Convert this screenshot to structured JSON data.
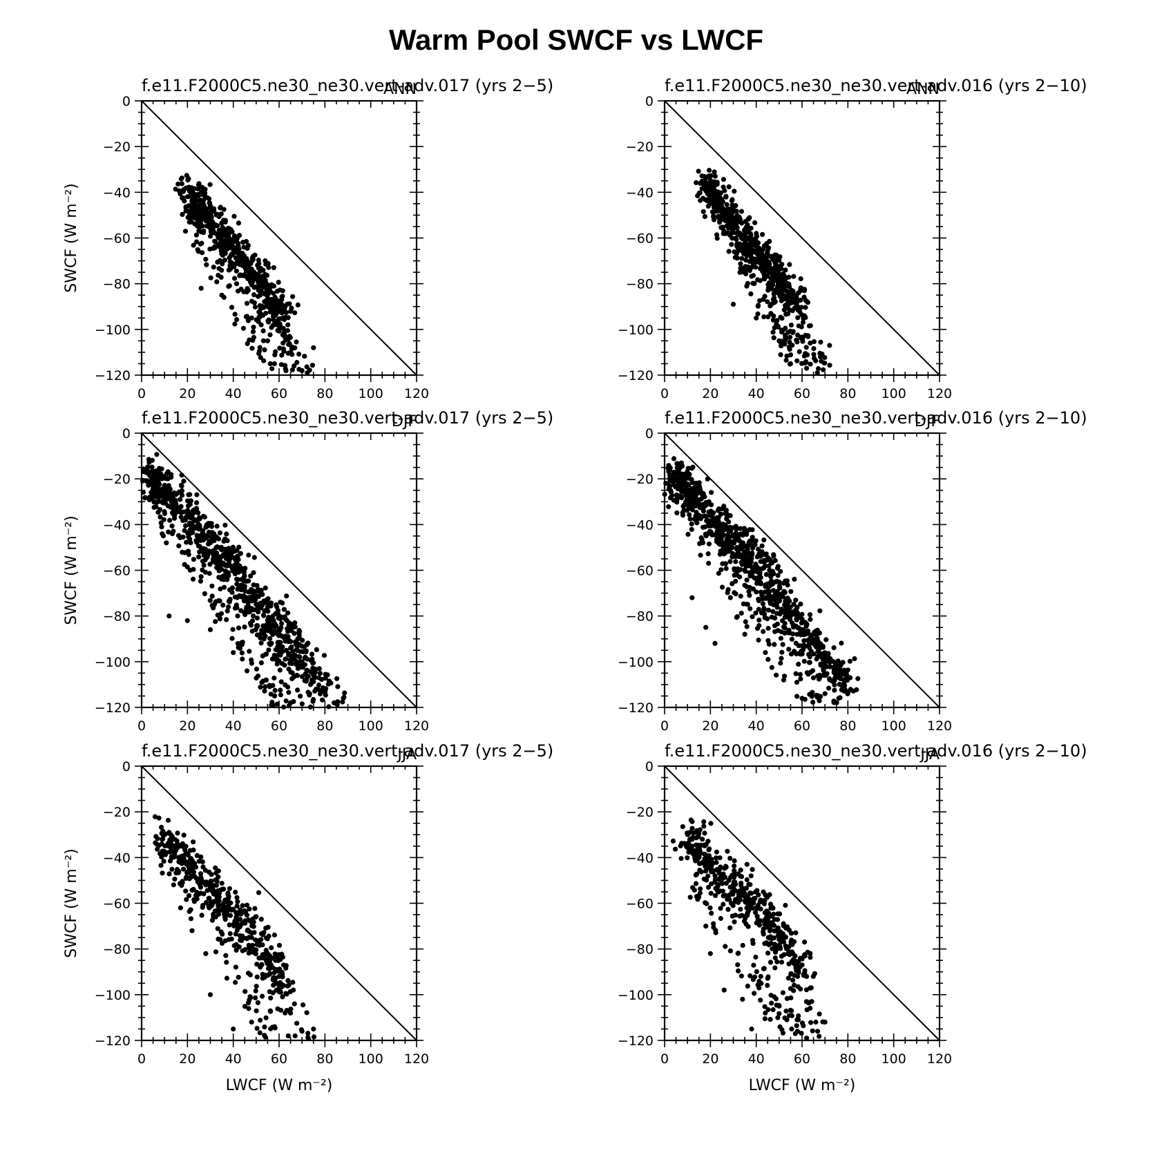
{
  "figure_title": "Warm Pool SWCF vs LWCF",
  "colors": {
    "points": "#000000",
    "axes": "#000000",
    "background": "#ffffff"
  },
  "chart_data": [
    {
      "type": "scatter",
      "title": "f.e11.F2000C5.ne30_ne30.vert-adv.017 (yrs 2−5)",
      "season": "ANN",
      "xlabel": "LWCF (W m⁻²)",
      "ylabel": "SWCF (W m⁻²)",
      "show_xlabel": false,
      "show_ylabel": true,
      "xlim": [
        0,
        120
      ],
      "ylim": [
        -120,
        0
      ],
      "xticks": [
        0,
        20,
        40,
        60,
        80,
        100,
        120
      ],
      "yticks": [
        0,
        -20,
        -40,
        -60,
        -80,
        -100,
        -120
      ],
      "reference_line": {
        "from": [
          0,
          0
        ],
        "to": [
          120,
          -120
        ]
      },
      "cloud": {
        "n": 650,
        "seed": 11,
        "core": [
          [
            20,
            -38
          ],
          [
            25,
            -48
          ],
          [
            35,
            -58
          ],
          [
            45,
            -70
          ],
          [
            55,
            -83
          ],
          [
            62,
            -95
          ]
        ],
        "core_spread": 3,
        "tail": {
          "x": [
            25,
            72
          ],
          "y": [
            -60,
            -120
          ]
        }
      },
      "points": [
        [
          20,
          -38
        ],
        [
          22,
          -44
        ],
        [
          25,
          -50
        ],
        [
          30,
          -54
        ],
        [
          35,
          -58
        ],
        [
          40,
          -64
        ],
        [
          45,
          -70
        ],
        [
          50,
          -78
        ],
        [
          55,
          -83
        ],
        [
          60,
          -90
        ],
        [
          62,
          -95
        ],
        [
          26,
          -82
        ],
        [
          35,
          -85
        ],
        [
          48,
          -95
        ],
        [
          55,
          -105
        ],
        [
          58,
          -115
        ],
        [
          65,
          -110
        ],
        [
          70,
          -118
        ],
        [
          75,
          -108
        ]
      ]
    },
    {
      "type": "scatter",
      "title": "f.e11.F2000C5.ne30_ne30.vert-adv.016 (yrs 2−10)",
      "season": "ANN",
      "xlabel": "LWCF (W m⁻²)",
      "ylabel": "SWCF (W m⁻²)",
      "show_xlabel": false,
      "show_ylabel": false,
      "xlim": [
        0,
        120
      ],
      "ylim": [
        -120,
        0
      ],
      "xticks": [
        0,
        20,
        40,
        60,
        80,
        100,
        120
      ],
      "yticks": [
        0,
        -20,
        -40,
        -60,
        -80,
        -100,
        -120
      ],
      "reference_line": {
        "from": [
          0,
          0
        ],
        "to": [
          120,
          -120
        ]
      },
      "cloud": {
        "n": 650,
        "seed": 16,
        "core": [
          [
            19,
            -37
          ],
          [
            25,
            -48
          ],
          [
            33,
            -58
          ],
          [
            42,
            -68
          ],
          [
            50,
            -78
          ],
          [
            58,
            -90
          ]
        ],
        "core_spread": 3,
        "tail": {
          "x": [
            28,
            72
          ],
          "y": [
            -62,
            -120
          ]
        }
      },
      "points": [
        [
          19,
          -37
        ],
        [
          22,
          -42
        ],
        [
          25,
          -48
        ],
        [
          30,
          -54
        ],
        [
          33,
          -58
        ],
        [
          38,
          -63
        ],
        [
          42,
          -68
        ],
        [
          46,
          -73
        ],
        [
          50,
          -78
        ],
        [
          55,
          -85
        ],
        [
          58,
          -90
        ],
        [
          30,
          -89
        ],
        [
          40,
          -95
        ],
        [
          50,
          -105
        ],
        [
          55,
          -115
        ],
        [
          62,
          -117
        ],
        [
          68,
          -112
        ],
        [
          72,
          -107
        ]
      ]
    },
    {
      "type": "scatter",
      "title": "f.e11.F2000C5.ne30_ne30.vert-adv.017 (yrs 2−5)",
      "season": "DJF",
      "xlabel": "LWCF (W m⁻²)",
      "ylabel": "SWCF (W m⁻²)",
      "show_xlabel": false,
      "show_ylabel": true,
      "xlim": [
        0,
        120
      ],
      "ylim": [
        -120,
        0
      ],
      "xticks": [
        0,
        20,
        40,
        60,
        80,
        100,
        120
      ],
      "yticks": [
        0,
        -20,
        -40,
        -60,
        -80,
        -100,
        -120
      ],
      "reference_line": {
        "from": [
          0,
          0
        ],
        "to": [
          120,
          -120
        ]
      },
      "cloud": {
        "n": 900,
        "seed": 21,
        "core": [
          [
            4,
            -19
          ],
          [
            10,
            -26
          ],
          [
            20,
            -36
          ],
          [
            30,
            -48
          ],
          [
            40,
            -60
          ],
          [
            50,
            -75
          ],
          [
            60,
            -88
          ],
          [
            70,
            -100
          ],
          [
            80,
            -112
          ]
        ],
        "core_spread": 3.5,
        "tail": {
          "x": [
            10,
            85
          ],
          "y": [
            -40,
            -120
          ]
        }
      },
      "points": [
        [
          4,
          -19
        ],
        [
          7,
          -22
        ],
        [
          10,
          -26
        ],
        [
          15,
          -31
        ],
        [
          20,
          -36
        ],
        [
          25,
          -42
        ],
        [
          30,
          -48
        ],
        [
          35,
          -54
        ],
        [
          40,
          -60
        ],
        [
          45,
          -67
        ],
        [
          50,
          -75
        ],
        [
          55,
          -82
        ],
        [
          60,
          -88
        ],
        [
          65,
          -94
        ],
        [
          70,
          -100
        ],
        [
          75,
          -106
        ],
        [
          80,
          -112
        ],
        [
          84,
          -118
        ],
        [
          12,
          -80
        ],
        [
          20,
          -82
        ],
        [
          30,
          -86
        ],
        [
          40,
          -96
        ],
        [
          46,
          -104
        ],
        [
          58,
          -115
        ],
        [
          65,
          -118
        ]
      ]
    },
    {
      "type": "scatter",
      "title": "f.e11.F2000C5.ne30_ne30.vert-adv.016 (yrs 2−10)",
      "season": "DJF",
      "xlabel": "LWCF (W m⁻²)",
      "ylabel": "SWCF (W m⁻²)",
      "show_xlabel": false,
      "show_ylabel": false,
      "xlim": [
        0,
        120
      ],
      "ylim": [
        -120,
        0
      ],
      "xticks": [
        0,
        20,
        40,
        60,
        80,
        100,
        120
      ],
      "yticks": [
        0,
        -20,
        -40,
        -60,
        -80,
        -100,
        -120
      ],
      "reference_line": {
        "from": [
          0,
          0
        ],
        "to": [
          120,
          -120
        ]
      },
      "cloud": {
        "n": 900,
        "seed": 26,
        "core": [
          [
            4,
            -18
          ],
          [
            10,
            -26
          ],
          [
            20,
            -36
          ],
          [
            30,
            -48
          ],
          [
            40,
            -60
          ],
          [
            50,
            -73
          ],
          [
            60,
            -86
          ],
          [
            70,
            -98
          ],
          [
            78,
            -110
          ]
        ],
        "core_spread": 3.5,
        "tail": {
          "x": [
            12,
            80
          ],
          "y": [
            -40,
            -118
          ]
        }
      },
      "points": [
        [
          4,
          -18
        ],
        [
          7,
          -22
        ],
        [
          10,
          -26
        ],
        [
          15,
          -31
        ],
        [
          20,
          -36
        ],
        [
          25,
          -42
        ],
        [
          30,
          -48
        ],
        [
          35,
          -54
        ],
        [
          40,
          -60
        ],
        [
          45,
          -66
        ],
        [
          50,
          -73
        ],
        [
          55,
          -80
        ],
        [
          60,
          -86
        ],
        [
          65,
          -92
        ],
        [
          70,
          -98
        ],
        [
          75,
          -104
        ],
        [
          78,
          -110
        ],
        [
          81,
          -107
        ],
        [
          12,
          -72
        ],
        [
          18,
          -85
        ],
        [
          22,
          -92
        ],
        [
          35,
          -88
        ],
        [
          44,
          -96
        ],
        [
          52,
          -108
        ],
        [
          60,
          -116
        ],
        [
          70,
          -114
        ],
        [
          76,
          -116
        ]
      ]
    },
    {
      "type": "scatter",
      "title": "f.e11.F2000C5.ne30_ne30.vert-adv.017 (yrs 2−5)",
      "season": "JJA",
      "xlabel": "LWCF (W m⁻²)",
      "ylabel": "SWCF (W m⁻²)",
      "show_xlabel": true,
      "show_ylabel": true,
      "xlim": [
        0,
        120
      ],
      "ylim": [
        -120,
        0
      ],
      "xticks": [
        0,
        20,
        40,
        60,
        80,
        100,
        120
      ],
      "yticks": [
        0,
        -20,
        -40,
        -60,
        -80,
        -100,
        -120
      ],
      "reference_line": {
        "from": [
          0,
          0
        ],
        "to": [
          120,
          -120
        ]
      },
      "cloud": {
        "n": 500,
        "seed": 31,
        "core": [
          [
            10,
            -31
          ],
          [
            18,
            -42
          ],
          [
            28,
            -52
          ],
          [
            38,
            -62
          ],
          [
            48,
            -73
          ],
          [
            56,
            -85
          ],
          [
            62,
            -96
          ]
        ],
        "core_spread": 3.5,
        "tail": {
          "x": [
            16,
            75
          ],
          "y": [
            -50,
            -120
          ]
        }
      },
      "points": [
        [
          9,
          -32
        ],
        [
          12,
          -29
        ],
        [
          15,
          -36
        ],
        [
          18,
          -42
        ],
        [
          22,
          -46
        ],
        [
          28,
          -52
        ],
        [
          33,
          -57
        ],
        [
          38,
          -62
        ],
        [
          43,
          -67
        ],
        [
          48,
          -73
        ],
        [
          52,
          -78
        ],
        [
          56,
          -85
        ],
        [
          60,
          -92
        ],
        [
          62,
          -96
        ],
        [
          17,
          -62
        ],
        [
          22,
          -72
        ],
        [
          28,
          -82
        ],
        [
          30,
          -100
        ],
        [
          40,
          -115
        ],
        [
          48,
          -112
        ],
        [
          58,
          -114
        ],
        [
          64,
          -118
        ],
        [
          70,
          -116
        ],
        [
          75,
          -115
        ]
      ]
    },
    {
      "type": "scatter",
      "title": "f.e11.F2000C5.ne30_ne30.vert-adv.016 (yrs 2−10)",
      "season": "JJA",
      "xlabel": "LWCF (W m⁻²)",
      "ylabel": "SWCF (W m⁻²)",
      "show_xlabel": true,
      "show_ylabel": false,
      "xlim": [
        0,
        120
      ],
      "ylim": [
        -120,
        0
      ],
      "xticks": [
        0,
        20,
        40,
        60,
        80,
        100,
        120
      ],
      "yticks": [
        0,
        -20,
        -40,
        -60,
        -80,
        -100,
        -120
      ],
      "reference_line": {
        "from": [
          0,
          0
        ],
        "to": [
          120,
          -120
        ]
      },
      "cloud": {
        "n": 500,
        "seed": 36,
        "core": [
          [
            11,
            -31
          ],
          [
            18,
            -44
          ],
          [
            30,
            -52
          ],
          [
            40,
            -62
          ],
          [
            48,
            -72
          ],
          [
            56,
            -82
          ],
          [
            62,
            -92
          ]
        ],
        "core_spread": 3.5,
        "tail": {
          "x": [
            14,
            70
          ],
          "y": [
            -52,
            -120
          ]
        }
      },
      "points": [
        [
          11,
          -29
        ],
        [
          12,
          -35
        ],
        [
          15,
          -40
        ],
        [
          18,
          -44
        ],
        [
          22,
          -48
        ],
        [
          28,
          -50
        ],
        [
          30,
          -52
        ],
        [
          35,
          -57
        ],
        [
          40,
          -62
        ],
        [
          44,
          -67
        ],
        [
          48,
          -72
        ],
        [
          52,
          -77
        ],
        [
          56,
          -82
        ],
        [
          60,
          -87
        ],
        [
          62,
          -92
        ],
        [
          64,
          -97
        ],
        [
          14,
          -57
        ],
        [
          18,
          -70
        ],
        [
          20,
          -82
        ],
        [
          26,
          -98
        ],
        [
          34,
          -102
        ],
        [
          38,
          -115
        ],
        [
          50,
          -105
        ],
        [
          58,
          -116
        ],
        [
          62,
          -119
        ],
        [
          66,
          -112
        ],
        [
          70,
          -112
        ]
      ]
    }
  ]
}
